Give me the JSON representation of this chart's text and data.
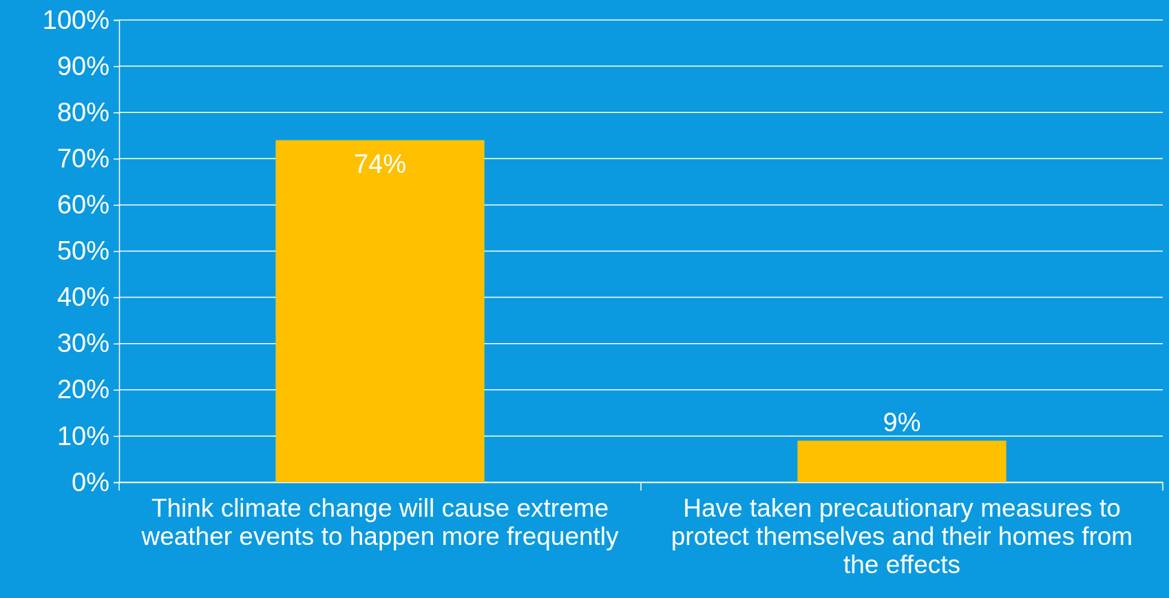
{
  "chart_data": {
    "type": "bar",
    "categories": [
      "Think climate change will cause extreme weather events to happen more frequently",
      "Have taken precautionary measures to protect themselves and their homes from the effects"
    ],
    "values": [
      74,
      9
    ],
    "color": "#ffc000",
    "value_labels": [
      "74%",
      "9%"
    ],
    "ylim": [
      0,
      100
    ],
    "yticks": [
      {
        "value": 0,
        "label": "0%"
      },
      {
        "value": 10,
        "label": "10%"
      },
      {
        "value": 20,
        "label": "20%"
      },
      {
        "value": 30,
        "label": "30%"
      },
      {
        "value": 40,
        "label": "40%"
      },
      {
        "value": 50,
        "label": "50%"
      },
      {
        "value": 60,
        "label": "60%"
      },
      {
        "value": 70,
        "label": "70%"
      },
      {
        "value": 80,
        "label": "80%"
      },
      {
        "value": 90,
        "label": "90%"
      },
      {
        "value": 100,
        "label": "100%"
      }
    ],
    "grid": "y"
  }
}
